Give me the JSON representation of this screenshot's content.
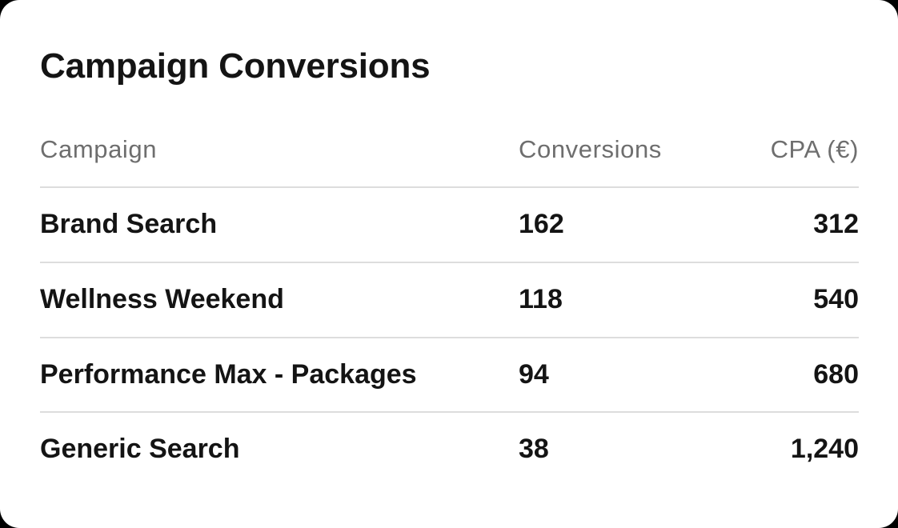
{
  "card": {
    "title": "Campaign Conversions",
    "table": {
      "columns": {
        "campaign": "Campaign",
        "conversions": "Conversions",
        "cpa": "CPA (€)"
      },
      "rows": [
        {
          "campaign": "Brand Search",
          "conversions": "162",
          "cpa": "312"
        },
        {
          "campaign": "Wellness Weekend",
          "conversions": "118",
          "cpa": "540"
        },
        {
          "campaign": "Performance Max - Packages",
          "conversions": "94",
          "cpa": "680"
        },
        {
          "campaign": "Generic Search",
          "conversions": "38",
          "cpa": "1,240"
        }
      ]
    }
  },
  "colors": {
    "card_background": "#ffffff",
    "page_background": "#000000",
    "title_text": "#141414",
    "header_text": "#6e6e6e",
    "row_text": "#141414",
    "divider": "#dddddd"
  },
  "chart_data": {
    "type": "table",
    "title": "Campaign Conversions",
    "columns": [
      "Campaign",
      "Conversions",
      "CPA (€)"
    ],
    "rows": [
      [
        "Brand Search",
        162,
        312
      ],
      [
        "Wellness Weekend",
        118,
        540
      ],
      [
        "Performance Max - Packages",
        94,
        680
      ],
      [
        "Generic Search",
        38,
        1240
      ]
    ]
  }
}
